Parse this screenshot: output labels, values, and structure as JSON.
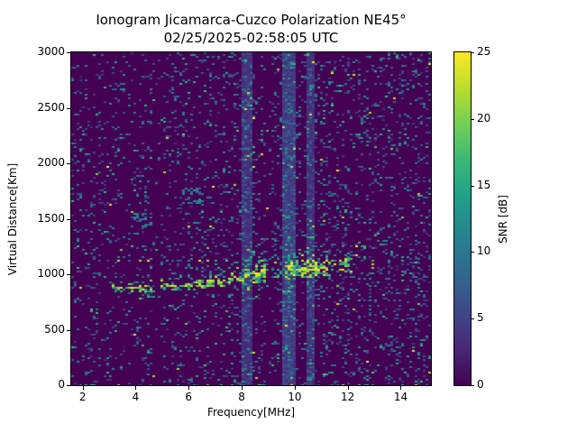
{
  "figure": {
    "title_line1": "Ionogram Jicamarca-Cuzco Polarization NE45°",
    "title_line2": "02/25/2025-02:58:05 UTC",
    "background_color": "#ffffff"
  },
  "chart_data": {
    "type": "heatmap",
    "title": "Ionogram Jicamarca-Cuzco Polarization NE45°",
    "subtitle": "02/25/2025-02:58:05 UTC",
    "xlabel": "Frequency[MHz]",
    "ylabel": "Virtual Distance[Km]",
    "colorbar_label": "SNR [dB]",
    "xlim": [
      1.57,
      15.14
    ],
    "ylim": [
      0,
      3000
    ],
    "clim": [
      0,
      25
    ],
    "xticks": [
      2,
      4,
      6,
      8,
      10,
      12,
      14
    ],
    "yticks": [
      0,
      500,
      1000,
      1500,
      2000,
      2500,
      3000
    ],
    "colorbar_ticks": [
      0,
      5,
      10,
      15,
      20,
      25
    ],
    "grid": false,
    "colormap": "viridis",
    "viridis_stops": [
      "#440154",
      "#482878",
      "#3e4989",
      "#31688e",
      "#26828e",
      "#1f9e89",
      "#35b779",
      "#6ece58",
      "#b5de2b",
      "#fde725"
    ],
    "background_value_db": 0,
    "noise": {
      "base_probability": 0.085,
      "extra_probability_right": 0.065,
      "value_mix": [
        {
          "weight": 0.52,
          "min_db": 3.5,
          "max_db": 7.5
        },
        {
          "weight": 0.36,
          "min_db": 7.5,
          "max_db": 12.5
        },
        {
          "weight": 0.095,
          "min_db": 12.5,
          "max_db": 17.5
        },
        {
          "weight": 0.025,
          "min_db": 18.0,
          "max_db": 25.0
        }
      ],
      "bottom_edge_km": 12,
      "bottom_edge_probability": 0.09
    },
    "rfi_bands": [
      {
        "f_start": 8.0,
        "f_end": 8.45,
        "level_db": 3.5,
        "speckle": 0.16
      },
      {
        "f_start": 9.49,
        "f_end": 10.02,
        "level_db": 4.5,
        "speckle": 0.2
      },
      {
        "f_start": 10.44,
        "f_end": 10.72,
        "level_db": 3.5,
        "speckle": 0.16
      }
    ],
    "quiet_bands": [
      {
        "f_start": 3.64,
        "f_end": 3.76
      },
      {
        "f_start": 4.66,
        "f_end": 4.97
      },
      {
        "f_start": 8.93,
        "f_end": 9.14
      }
    ],
    "echo_trace_segments": [
      {
        "f0": 3.1,
        "f1": 4.6,
        "h0": 862,
        "h1": 880,
        "halfwidth_km": 42,
        "density": 0.62,
        "yellow_fraction": 0.55
      },
      {
        "f0": 4.6,
        "f1": 6.5,
        "h0": 880,
        "h1": 915,
        "halfwidth_km": 48,
        "density": 0.62,
        "yellow_fraction": 0.5
      },
      {
        "f0": 6.5,
        "f1": 8.0,
        "h0": 915,
        "h1": 968,
        "halfwidth_km": 62,
        "density": 0.68,
        "yellow_fraction": 0.5
      },
      {
        "f0": 8.0,
        "f1": 8.95,
        "h0": 975,
        "h1": 1000,
        "halfwidth_km": 85,
        "density": 0.88,
        "yellow_fraction": 0.65
      },
      {
        "f0": 8.95,
        "f1": 9.6,
        "h0": 1000,
        "h1": 1020,
        "halfwidth_km": 70,
        "density": 0.2,
        "yellow_fraction": 0.1
      },
      {
        "f0": 9.6,
        "f1": 11.25,
        "h0": 1040,
        "h1": 1060,
        "halfwidth_km": 90,
        "density": 0.88,
        "yellow_fraction": 0.65
      },
      {
        "f0": 11.25,
        "f1": 12.1,
        "h0": 1060,
        "h1": 1075,
        "halfwidth_km": 80,
        "density": 0.45,
        "yellow_fraction": 0.35
      },
      {
        "f0": 12.1,
        "f1": 12.95,
        "h0": 1075,
        "h1": 1085,
        "halfwidth_km": 70,
        "density": 0.2,
        "yellow_fraction": 0.2
      }
    ],
    "upper_dotted_trace": {
      "f_start": 3.6,
      "f_end": 12.2,
      "height_km": 1122,
      "halfwidth_km": 13,
      "density": 0.2,
      "bright_fraction": 0.45
    },
    "noise_clusters": [
      {
        "f0": 3.9,
        "f1": 4.6,
        "h0": 1430,
        "h1": 1580,
        "density": 0.3
      },
      {
        "f0": 5.7,
        "f1": 6.6,
        "h0": 1600,
        "h1": 1780,
        "density": 0.26
      }
    ],
    "render_seed": 1234567
  }
}
